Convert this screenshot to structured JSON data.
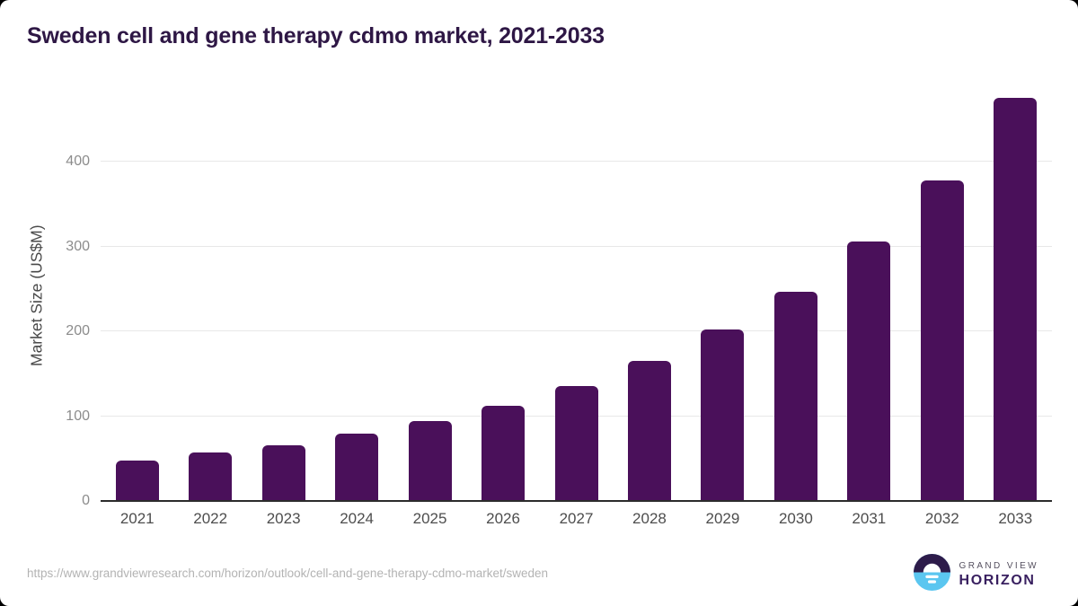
{
  "page": {
    "title": "Sweden cell and gene therapy cdmo market, 2021-2033",
    "footer_url": "https://www.grandviewresearch.com/horizon/outlook/cell-and-gene-therapy-cdmo-market/sweden",
    "brand": {
      "line1": "GRAND VIEW",
      "line2": "HORIZON"
    }
  },
  "colors": {
    "bar": "#4a105a",
    "title_text": "#2e1745",
    "gridline": "#e8e8e8",
    "axis_line": "#2b2b2b",
    "tick_text": "#8c8c8c",
    "x_label_text": "#4d4d4d",
    "url_text": "#b3b3b3",
    "logo_dark": "#2d1b4a",
    "logo_blue": "#5bc6f0"
  },
  "chart_data": {
    "type": "bar",
    "title": "Sweden cell and gene therapy cdmo market, 2021-2033",
    "categories": [
      "2021",
      "2022",
      "2023",
      "2024",
      "2025",
      "2026",
      "2027",
      "2028",
      "2029",
      "2030",
      "2031",
      "2032",
      "2033"
    ],
    "values": [
      47,
      56,
      65,
      78,
      93,
      111,
      135,
      164,
      201,
      246,
      305,
      377,
      474
    ],
    "xlabel": "",
    "ylabel": "Market Size (US$M)",
    "yticks": [
      0,
      100,
      200,
      300,
      400
    ],
    "ylim": [
      0,
      485
    ],
    "grid": true,
    "legend": false,
    "bar_color": "#4a105a",
    "units": "US$M"
  }
}
